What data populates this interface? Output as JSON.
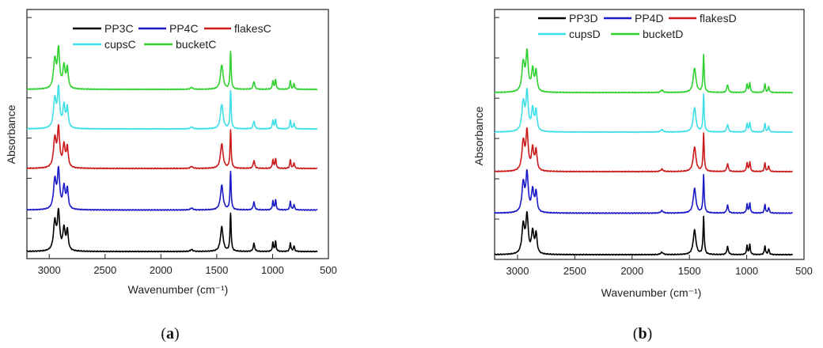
{
  "captions": {
    "a": "(a)",
    "b": "(b)",
    "a_letter": "a",
    "b_letter": "b"
  },
  "series_colors": {
    "PP3": "#000000",
    "PP4": "#1a1ac8",
    "flakes": "#cc1a1a",
    "cups": "#3fdfe8",
    "bucket": "#2ed12e"
  },
  "chart_data": [
    {
      "type": "line",
      "id": "a",
      "title": "",
      "xlabel": "Wavenumber (cm⁻¹)",
      "ylabel": "Absorbance",
      "xlim": [
        3200,
        500
      ],
      "x_ticks": [
        3000,
        2500,
        2000,
        1500,
        1000,
        500
      ],
      "x_tick_labels": [
        "3000",
        "2500",
        "2000",
        "1500",
        "1000",
        "500"
      ],
      "ylim": [
        0,
        6
      ],
      "y_tick_labels": [],
      "legend": [
        "PP3C",
        "PP4C",
        "flakesC",
        "cupsC",
        "bucketC"
      ],
      "x_range": [
        3200,
        600
      ],
      "series": [
        {
          "name": "PP3C",
          "color_key": "PP3",
          "offset": 0.0
        },
        {
          "name": "PP4C",
          "color_key": "PP4",
          "offset": 1.05
        },
        {
          "name": "flakesC",
          "color_key": "flakes",
          "offset": 2.1
        },
        {
          "name": "cupsC",
          "color_key": "cups",
          "offset": 3.1
        },
        {
          "name": "bucketC",
          "color_key": "bucket",
          "offset": 4.1
        }
      ],
      "peaks": [
        {
          "x": 2950,
          "h": 0.72,
          "w": 14
        },
        {
          "x": 2917,
          "h": 0.95,
          "w": 12
        },
        {
          "x": 2868,
          "h": 0.55,
          "w": 12
        },
        {
          "x": 2838,
          "h": 0.5,
          "w": 10
        },
        {
          "x": 1725,
          "h": 0.05,
          "w": 12
        },
        {
          "x": 1455,
          "h": 0.62,
          "w": 14
        },
        {
          "x": 1376,
          "h": 0.95,
          "w": 6
        },
        {
          "x": 1167,
          "h": 0.2,
          "w": 8
        },
        {
          "x": 997,
          "h": 0.22,
          "w": 6
        },
        {
          "x": 973,
          "h": 0.25,
          "w": 6
        },
        {
          "x": 841,
          "h": 0.22,
          "w": 6
        },
        {
          "x": 808,
          "h": 0.14,
          "w": 6
        }
      ]
    },
    {
      "type": "line",
      "id": "b",
      "title": "",
      "xlabel": "Wavenumber (cm⁻¹)",
      "ylabel": "Absorbance",
      "xlim": [
        3200,
        500
      ],
      "x_ticks": [
        3000,
        2500,
        2000,
        1500,
        1000,
        500
      ],
      "x_tick_labels": [
        "3000",
        "2500",
        "2000",
        "1500",
        "1000",
        "500"
      ],
      "ylim": [
        0,
        6
      ],
      "y_tick_labels": [],
      "legend": [
        "PP3D",
        "PP4D",
        "flakesD",
        "cupsD",
        "bucketD"
      ],
      "x_range": [
        3200,
        600
      ],
      "series": [
        {
          "name": "PP3D",
          "color_key": "PP3",
          "offset": 0.0
        },
        {
          "name": "PP4D",
          "color_key": "PP4",
          "offset": 1.05
        },
        {
          "name": "flakesD",
          "color_key": "flakes",
          "offset": 2.1
        },
        {
          "name": "cupsD",
          "color_key": "cups",
          "offset": 3.1
        },
        {
          "name": "bucketD",
          "color_key": "bucket",
          "offset": 4.1
        }
      ],
      "peaks": [
        {
          "x": 2950,
          "h": 0.72,
          "w": 14
        },
        {
          "x": 2917,
          "h": 0.95,
          "w": 12
        },
        {
          "x": 2868,
          "h": 0.55,
          "w": 12
        },
        {
          "x": 2838,
          "h": 0.5,
          "w": 10
        },
        {
          "x": 1740,
          "h": 0.06,
          "w": 12
        },
        {
          "x": 1455,
          "h": 0.62,
          "w": 14
        },
        {
          "x": 1376,
          "h": 0.95,
          "w": 6
        },
        {
          "x": 1167,
          "h": 0.2,
          "w": 8
        },
        {
          "x": 997,
          "h": 0.22,
          "w": 6
        },
        {
          "x": 973,
          "h": 0.25,
          "w": 6
        },
        {
          "x": 841,
          "h": 0.22,
          "w": 6
        },
        {
          "x": 808,
          "h": 0.14,
          "w": 6
        }
      ]
    }
  ]
}
